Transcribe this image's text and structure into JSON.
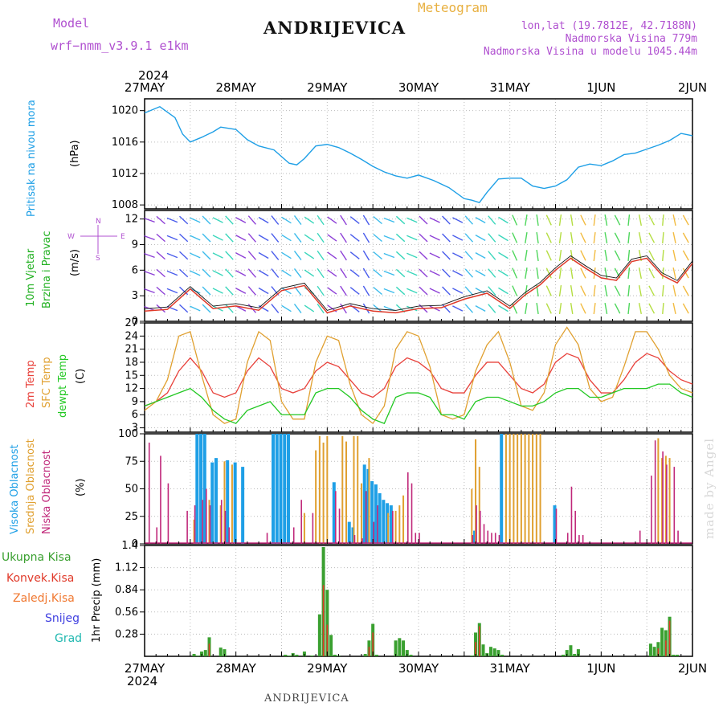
{
  "header": {
    "model_label": "Model",
    "model_name": "wrf−nmm_v3.9.1  e1km",
    "title": "Meteogram",
    "station": "ANDRIJEVICA",
    "lonlat": "lon,lat (19.7812E, 42.7188N)",
    "elevation": "Nadmorska Visina 779m",
    "model_elevation": "Nadmorska Visina u modelu 1045.44m",
    "year_top": "2024",
    "year_bottom": "2024",
    "watermark": "made by Angel",
    "footer_station": "ANDRIJEVICA"
  },
  "colors": {
    "pressure": "#1e9fe6",
    "wind_label": "#20b020",
    "wind_speed": "#e03a2a",
    "temp2m": "#e8403a",
    "sfc_temp": "#e0a030",
    "dewpoint": "#22c822",
    "cloud_high": "#1e9fe6",
    "cloud_mid": "#e0a030",
    "cloud_low": "#c0287a",
    "precip_total": "#3aa030",
    "precip_conv": "#e03a2a",
    "precip_strat": "#f07830",
    "snow": "#4040e0",
    "graupel": "#20b8b0",
    "grid": "#bbbbbb"
  },
  "x_axis": {
    "dates": [
      "27MAY",
      "28MAY",
      "29MAY",
      "30MAY",
      "31MAY",
      "1JUN",
      "2JUN"
    ],
    "hours_span": 144
  },
  "chart_data": [
    {
      "type": "line",
      "panel": "pressure",
      "ylabel": "Pritisak na nivou mora",
      "unit": "(hPa)",
      "ylim": [
        1007.5,
        1021.5
      ],
      "yticks": [
        1008,
        1012,
        1016,
        1020
      ],
      "x_hours": [
        0,
        4,
        8,
        10,
        12,
        15,
        18,
        20,
        24,
        27,
        30,
        34,
        38,
        40,
        42,
        45,
        48,
        51,
        54,
        57,
        60,
        63,
        66,
        69,
        72,
        76,
        80,
        84,
        86,
        88,
        90,
        93,
        96,
        99,
        102,
        105,
        108,
        111,
        114,
        117,
        120,
        123,
        126,
        129,
        132,
        135,
        138,
        141,
        144
      ],
      "series": [
        {
          "name": "",
          "values": [
            1019.7,
            1020.5,
            1019.1,
            1017.0,
            1016.0,
            1016.6,
            1017.3,
            1017.9,
            1017.6,
            1016.3,
            1015.5,
            1015.0,
            1013.3,
            1013.1,
            1013.9,
            1015.5,
            1015.7,
            1015.3,
            1014.6,
            1013.8,
            1012.9,
            1012.2,
            1011.7,
            1011.4,
            1011.8,
            1011.1,
            1010.2,
            1008.8,
            1008.6,
            1008.3,
            1009.6,
            1011.3,
            1011.4,
            1011.4,
            1010.4,
            1010.1,
            1010.4,
            1011.2,
            1012.8,
            1013.2,
            1013.0,
            1013.6,
            1014.4,
            1014.6,
            1015.1,
            1015.6,
            1016.2,
            1017.1,
            1016.8
          ]
        }
      ]
    },
    {
      "type": "line",
      "panel": "wind",
      "ylabel": "10m Vjetar Brzina i Pravac",
      "unit": "(m/s)",
      "compass": {
        "n": "N",
        "s": "S",
        "w": "W",
        "e": "E"
      },
      "ylim": [
        0,
        13
      ],
      "yticks": [
        0,
        3,
        6,
        9,
        12
      ],
      "x_hours": [
        0,
        6,
        12,
        18,
        24,
        30,
        36,
        42,
        48,
        54,
        60,
        66,
        72,
        78,
        84,
        90,
        96,
        100,
        104,
        108,
        112,
        116,
        120,
        124,
        128,
        132,
        136,
        140,
        144
      ],
      "series": [
        {
          "name": "",
          "values": [
            1.2,
            1.4,
            3.8,
            1.5,
            1.8,
            1.3,
            3.6,
            4.2,
            1.0,
            1.8,
            1.2,
            1.0,
            1.5,
            1.6,
            2.6,
            3.3,
            1.5,
            3.1,
            4.3,
            6.0,
            7.4,
            6.2,
            5.1,
            4.8,
            7.0,
            7.4,
            5.4,
            4.5,
            6.8
          ]
        }
      ]
    },
    {
      "type": "line",
      "panel": "temperature",
      "unit": "(C)",
      "ylim": [
        2,
        27
      ],
      "yticks": [
        3,
        6,
        9,
        12,
        15,
        18,
        21,
        24,
        27
      ],
      "x_hours": [
        0,
        3,
        6,
        9,
        12,
        15,
        18,
        21,
        24,
        27,
        30,
        33,
        36,
        39,
        42,
        45,
        48,
        51,
        54,
        57,
        60,
        63,
        66,
        69,
        72,
        75,
        78,
        81,
        84,
        87,
        90,
        93,
        96,
        99,
        102,
        105,
        108,
        111,
        114,
        117,
        120,
        123,
        126,
        129,
        132,
        135,
        138,
        141,
        144
      ],
      "series": [
        {
          "name": "2m Temp",
          "values": [
            8,
            9,
            11,
            16,
            19,
            16,
            11,
            10,
            11,
            16,
            19,
            17,
            12,
            11,
            12,
            16,
            18,
            17,
            14,
            11,
            10,
            12,
            17,
            19,
            18,
            16,
            12,
            11,
            11,
            15,
            18,
            18,
            15,
            12,
            11,
            13,
            18,
            20,
            19,
            14,
            11,
            11,
            14,
            18,
            20,
            19,
            16,
            14,
            13
          ]
        },
        {
          "name": "SFC Temp",
          "values": [
            7,
            9,
            14,
            24,
            25,
            15,
            6,
            4,
            5,
            18,
            25,
            23,
            9,
            5,
            5,
            18,
            24,
            23,
            13,
            6,
            4,
            8,
            21,
            25,
            24,
            17,
            6,
            5,
            6,
            16,
            22,
            25,
            18,
            8,
            7,
            11,
            22,
            26,
            22,
            12,
            9,
            10,
            17,
            25,
            25,
            21,
            15,
            12,
            11
          ]
        },
        {
          "name": "dewpt Temp",
          "values": [
            8,
            9,
            10,
            11,
            12,
            10,
            7,
            5,
            4,
            7,
            8,
            9,
            6,
            6,
            6,
            11,
            12,
            12,
            10,
            7,
            5,
            4,
            10,
            11,
            11,
            10,
            6,
            6,
            5,
            9,
            10,
            10,
            9,
            8,
            8,
            9,
            11,
            12,
            12,
            10,
            10,
            11,
            12,
            12,
            12,
            13,
            13,
            11,
            10
          ]
        }
      ]
    },
    {
      "type": "bar",
      "panel": "clouds",
      "unit": "(%)",
      "ylim": [
        0,
        100
      ],
      "yticks": [
        0,
        25,
        50,
        75,
        100
      ],
      "series": [
        {
          "name": "Visoka Oblacnost",
          "x_hours": [
            14,
            15,
            16,
            18,
            19,
            22,
            24,
            26,
            34,
            35,
            36,
            37,
            38,
            50,
            54,
            55,
            58,
            59,
            60,
            61,
            62,
            63,
            64,
            65,
            87,
            94,
            108
          ],
          "values": [
            100,
            100,
            100,
            74,
            78,
            76,
            74,
            70,
            100,
            100,
            100,
            100,
            100,
            56,
            20,
            15,
            72,
            68,
            57,
            54,
            46,
            40,
            37,
            35,
            12,
            100,
            35
          ]
        },
        {
          "name": "Srednja Oblacnost",
          "x_hours": [
            13,
            17,
            20,
            21,
            23,
            42,
            45,
            46,
            47,
            48,
            52,
            53,
            55,
            56,
            57,
            59,
            64,
            66,
            67,
            68,
            86,
            87,
            88,
            95,
            96,
            97,
            98,
            99,
            100,
            101,
            102,
            103,
            104,
            135,
            136,
            137,
            138
          ],
          "values": [
            22,
            40,
            35,
            75,
            72,
            28,
            85,
            98,
            92,
            98,
            98,
            93,
            98,
            98,
            55,
            78,
            28,
            30,
            35,
            44,
            50,
            95,
            70,
            100,
            100,
            100,
            100,
            100,
            100,
            100,
            100,
            100,
            100,
            96,
            78,
            80,
            78
          ]
        },
        {
          "name": "Niska Oblacnost",
          "x_hours": [
            1,
            3,
            4,
            6,
            11,
            13,
            15,
            16,
            17,
            20,
            21,
            22,
            32,
            39,
            41,
            44,
            50,
            51,
            55,
            57,
            58,
            60,
            61,
            65,
            69,
            70,
            71,
            72,
            86,
            87,
            88,
            89,
            90,
            91,
            92,
            93,
            108,
            111,
            112,
            113,
            114,
            115,
            130,
            133,
            134,
            136,
            137,
            139,
            140
          ],
          "values": [
            92,
            15,
            80,
            55,
            30,
            35,
            40,
            50,
            35,
            40,
            30,
            15,
            10,
            15,
            40,
            28,
            48,
            32,
            8,
            5,
            48,
            20,
            35,
            30,
            65,
            55,
            10,
            10,
            8,
            35,
            30,
            18,
            12,
            10,
            10,
            8,
            32,
            10,
            52,
            30,
            8,
            8,
            12,
            62,
            94,
            84,
            72,
            70,
            12
          ]
        }
      ]
    },
    {
      "type": "bar",
      "panel": "precipitation",
      "ylabel": "1hr Precip",
      "unit": "(mm)",
      "ylim": [
        0,
        1.4
      ],
      "yticks": [
        0.28,
        0.56,
        0.84,
        1.12,
        1.4
      ],
      "series": [
        {
          "name": "Ukupna Kisa",
          "x_hours": [
            13,
            14,
            15,
            16,
            17,
            20,
            21,
            37,
            38,
            39,
            40,
            42,
            44,
            46,
            47,
            48,
            49,
            50,
            51,
            58,
            59,
            60,
            61,
            66,
            67,
            68,
            69,
            70,
            86,
            87,
            88,
            89,
            90,
            91,
            92,
            93,
            94,
            110,
            111,
            112,
            113,
            114,
            133,
            134,
            135,
            136,
            137,
            138,
            139,
            140
          ],
          "values": [
            0.03,
            0.01,
            0.06,
            0.08,
            0.24,
            0.11,
            0.09,
            0.02,
            0.01,
            0.04,
            0.02,
            0.06,
            0.01,
            0.53,
            1.38,
            0.84,
            0.27,
            0.02,
            0.01,
            0.03,
            0.2,
            0.41,
            0.02,
            0.2,
            0.23,
            0.2,
            0.08,
            0.02,
            0.01,
            0.3,
            0.42,
            0.15,
            0.04,
            0.12,
            0.1,
            0.08,
            0.02,
            0.02,
            0.08,
            0.14,
            0.03,
            0.09,
            0.16,
            0.12,
            0.18,
            0.36,
            0.33,
            0.5,
            0.02,
            0.02
          ]
        },
        {
          "name": "Konvek.Kisa",
          "x_hours": [
            17,
            47,
            48,
            59,
            60,
            87,
            88,
            135,
            137,
            138
          ],
          "values": [
            0.16,
            0.9,
            0.4,
            0.12,
            0.3,
            0.18,
            0.38,
            0.1,
            0.2,
            0.45
          ]
        },
        {
          "name": "Zaledj.Kisa",
          "x_hours": [],
          "values": []
        },
        {
          "name": "Snijeg",
          "x_hours": [],
          "values": []
        },
        {
          "name": "Grad",
          "x_hours": [],
          "values": []
        }
      ]
    }
  ],
  "labels": {
    "pressure_left": "Pritisak na nivou mora",
    "pressure_unit": "(hPa)",
    "wind_left1": "10m Vjetar",
    "wind_left2": "Brzina i Pravac",
    "wind_unit": "(m/s)",
    "temp_left1": "2m Temp",
    "temp_left2": "SFC Temp",
    "temp_left3": "dewpt Temp",
    "temp_unit": "(C)",
    "cloud_left1": "Visoka Oblacnost",
    "cloud_left2": "Srednja Oblacnost",
    "cloud_left3": "Niska Oblacnost",
    "cloud_unit": "(%)",
    "precip_unit": "1hr Precip (mm)"
  }
}
